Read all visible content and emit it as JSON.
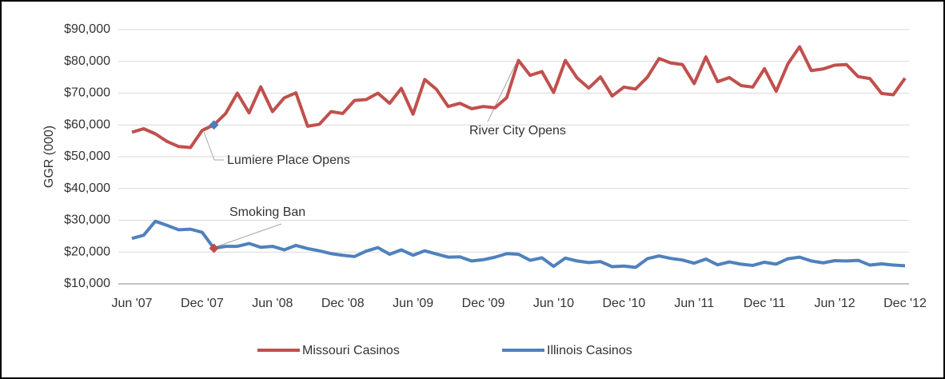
{
  "chart_data": {
    "type": "line",
    "y_label": "GGR (000)",
    "categories": [
      "Jun '07",
      null,
      null,
      null,
      null,
      null,
      "Dec '07",
      null,
      null,
      null,
      null,
      null,
      "Jun '08",
      null,
      null,
      null,
      null,
      null,
      "Dec '08",
      null,
      null,
      null,
      null,
      null,
      "Jun '09",
      null,
      null,
      null,
      null,
      null,
      "Dec '09",
      null,
      null,
      null,
      null,
      null,
      "Jun '10",
      null,
      null,
      null,
      null,
      null,
      "Dec '10",
      null,
      null,
      null,
      null,
      null,
      "Jun '11",
      null,
      null,
      null,
      null,
      null,
      "Dec '11",
      null,
      null,
      null,
      null,
      null,
      "Jun '12",
      null,
      null,
      null,
      null,
      null,
      "Dec '12"
    ],
    "series": [
      {
        "name": "Missouri Casinos",
        "color": "#c0504d",
        "highlight": {
          "index": 7,
          "color": "#4a7ebb"
        },
        "values": [
          57700,
          58800,
          57200,
          54800,
          53200,
          52900,
          58300,
          60000,
          63600,
          70000,
          63800,
          72000,
          64200,
          68500,
          70100,
          59600,
          60200,
          64200,
          63600,
          67700,
          68000,
          70000,
          66800,
          71500,
          63400,
          74300,
          71200,
          65800,
          66800,
          65100,
          65800,
          65400,
          68600,
          80300,
          75600,
          76800,
          70200,
          80300,
          74800,
          71600,
          75100,
          69100,
          71900,
          71300,
          75000,
          80900,
          79500,
          79000,
          73000,
          81400,
          73600,
          74900,
          72400,
          71900,
          77700,
          70600,
          79200,
          84600,
          77100,
          77600,
          78800,
          79000,
          75200,
          74600,
          69900,
          69500,
          74700
        ]
      },
      {
        "name": "Illinois Casinos",
        "color": "#4f81bd",
        "highlight": {
          "index": 7,
          "color": "#be4b48"
        },
        "values": [
          24300,
          25300,
          29700,
          28400,
          27000,
          27200,
          26200,
          21200,
          21800,
          21800,
          22700,
          21500,
          21800,
          20700,
          22100,
          21100,
          20400,
          19500,
          19000,
          18600,
          20300,
          21400,
          19300,
          20700,
          19000,
          20400,
          19400,
          18400,
          18500,
          17200,
          17600,
          18400,
          19500,
          19300,
          17400,
          18200,
          15500,
          18100,
          17200,
          16700,
          17000,
          15400,
          15600,
          15200,
          17900,
          18800,
          18000,
          17500,
          16500,
          17800,
          16000,
          16900,
          16200,
          15800,
          16800,
          16200,
          17900,
          18400,
          17200,
          16600,
          17300,
          17200,
          17400,
          15900,
          16300,
          15900,
          15700
        ]
      }
    ],
    "ylim": [
      10000,
      90000
    ],
    "yticks": [
      {
        "value": 10000,
        "label": "$10,000"
      },
      {
        "value": 20000,
        "label": "$20,000"
      },
      {
        "value": 30000,
        "label": "$30,000"
      },
      {
        "value": 40000,
        "label": "$40,000"
      },
      {
        "value": 50000,
        "label": "$50,000"
      },
      {
        "value": 60000,
        "label": "$60,000"
      },
      {
        "value": 70000,
        "label": "$70,000"
      },
      {
        "value": 80000,
        "label": "$80,000"
      },
      {
        "value": 90000,
        "label": "$90,000"
      }
    ],
    "grid": true,
    "legend": "bottom",
    "annotations": [
      "Lumiere Place Opens",
      "River City Opens",
      "Smoking Ban"
    ]
  }
}
